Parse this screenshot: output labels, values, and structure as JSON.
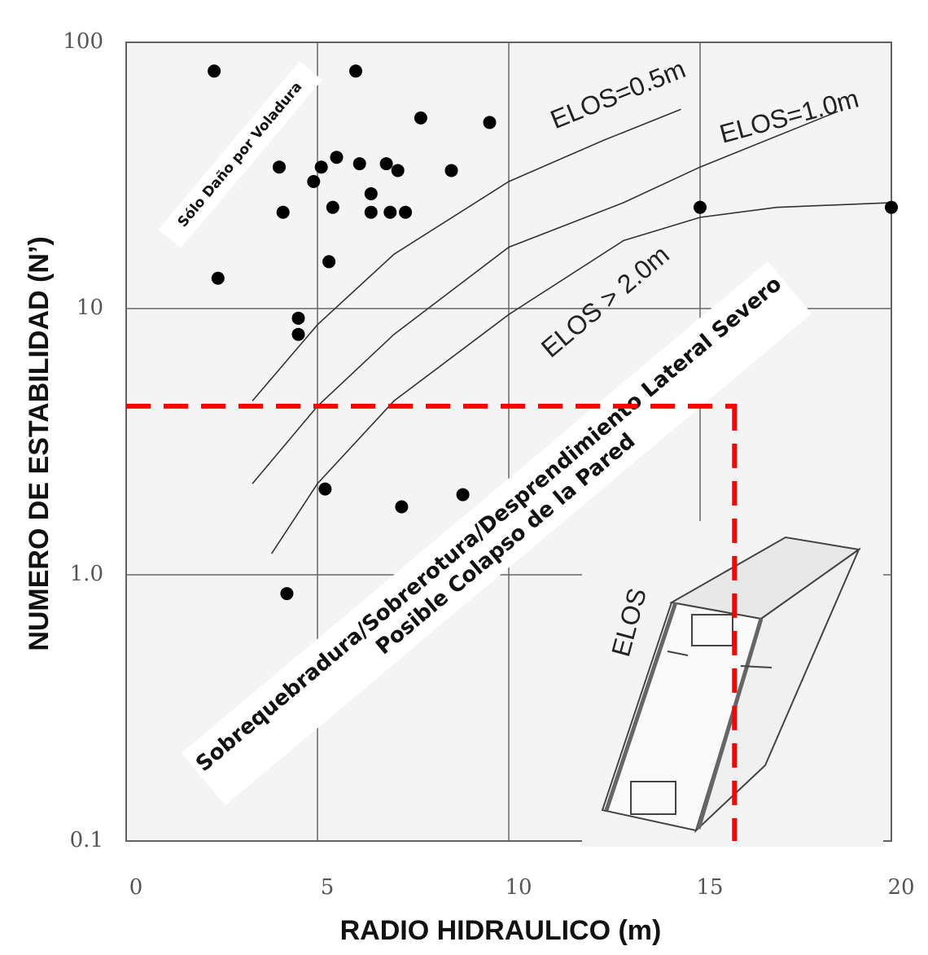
{
  "chart_data": {
    "type": "scatter",
    "x_label": "RADIO HIDRAULICO (m)",
    "y_label": "NUMERO DE ESTABILIDAD (N’)",
    "xlim": [
      0,
      20
    ],
    "xticks": [
      0,
      5,
      10,
      15,
      20
    ],
    "ylim": [
      0.1,
      100
    ],
    "yticks": [
      0.1,
      {
        "value": 1,
        "label": "1.0"
      },
      10,
      100
    ],
    "yscale": "log",
    "grid": true,
    "color": "#000000",
    "x": [
      2.3,
      6.0,
      7.7,
      9.5,
      4.0,
      5.1,
      5.5,
      6.1,
      6.8,
      7.1,
      8.5,
      4.9,
      6.4,
      4.1,
      5.4,
      6.4,
      6.9,
      7.3,
      15.0,
      20.0,
      2.4,
      5.3,
      4.5,
      4.5,
      5.2,
      7.2,
      8.8,
      4.2
    ],
    "y": [
      78,
      78,
      52,
      50,
      34,
      34,
      37,
      35,
      35,
      33,
      33,
      30,
      27,
      23,
      24,
      23,
      23,
      23,
      24,
      24,
      13,
      15,
      9.2,
      8,
      2.1,
      1.8,
      2.0,
      0.85
    ],
    "curves": [
      {
        "label": "ELOS=0.5m",
        "x": [
          3.3,
          5,
          7,
          10,
          12.5,
          14.5
        ],
        "y": [
          4.5,
          8.7,
          16,
          30,
          43,
          56
        ]
      },
      {
        "label": "ELOS=1.0m",
        "x": [
          3.3,
          5,
          7,
          10,
          13,
          15,
          18.6
        ],
        "y": [
          2.2,
          4.3,
          8,
          17,
          25,
          34,
          55
        ]
      },
      {
        "label": "ELOS > 2.0m",
        "x": [
          3.8,
          5,
          7,
          10,
          13,
          15,
          17,
          20
        ],
        "y": [
          1.2,
          2.2,
          4.5,
          9.5,
          18,
          22,
          24,
          25
        ]
      }
    ],
    "reference": {
      "x": 15.9,
      "y": 4.3,
      "color": "#ff0000"
    },
    "annotations": [
      "Sólo Daño por Voladura",
      "Sobrequebradura/Sobrerotura/Desprendimiento Lateral Severo",
      "Posible Colapso de la Pared",
      "ELOS"
    ]
  }
}
